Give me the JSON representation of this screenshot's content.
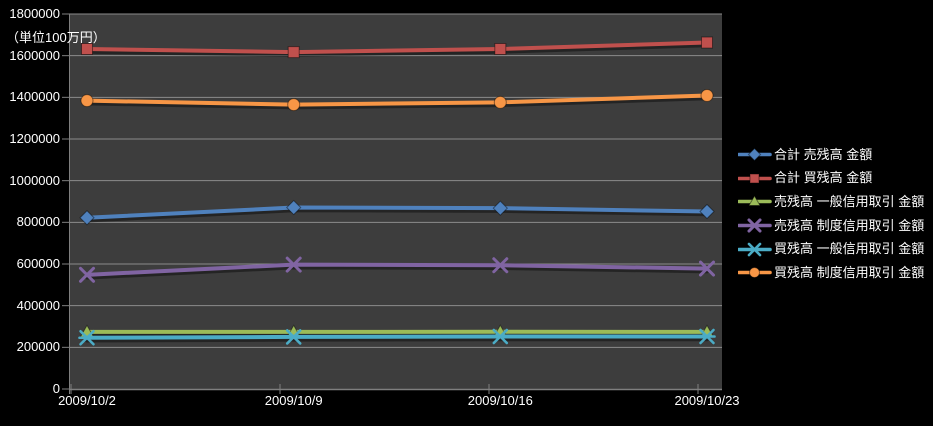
{
  "chart_data": {
    "type": "line",
    "title": "",
    "unit_label": "（単位100万円）",
    "xlabel": "",
    "ylabel": "",
    "ylim": [
      0,
      1800000
    ],
    "ytick_step": 200000,
    "ytick_labels": [
      "0",
      "200000",
      "400000",
      "600000",
      "800000",
      "1000000",
      "1200000",
      "1400000",
      "1600000",
      "1800000"
    ],
    "grid": true,
    "legend_position": "right",
    "categories": [
      "2009/10/2",
      "2009/10/9",
      "2009/10/16",
      "2009/10/23"
    ],
    "series": [
      {
        "name": "合計 売残高 金額",
        "color": "#4F81BD",
        "marker": "diamond",
        "values": [
          822000,
          871000,
          868000,
          852000
        ]
      },
      {
        "name": "合計 買残高 金額",
        "color": "#C0504D",
        "marker": "square",
        "values": [
          1632000,
          1617000,
          1632000,
          1663000
        ]
      },
      {
        "name": "売残高 一般信用取引 金額",
        "color": "#9BBB59",
        "marker": "triangle",
        "values": [
          274000,
          274000,
          275000,
          274000
        ]
      },
      {
        "name": "売残高 制度信用取引 金額",
        "color": "#8064A2",
        "marker": "x",
        "values": [
          548000,
          597000,
          594000,
          578000
        ]
      },
      {
        "name": "買残高 一般信用取引 金額",
        "color": "#4BACC6",
        "marker": "asterisk",
        "values": [
          246000,
          250000,
          252000,
          252000
        ]
      },
      {
        "name": "買残高 制度信用取引 金額",
        "color": "#F79646",
        "marker": "circle",
        "values": [
          1384000,
          1365000,
          1376000,
          1409000
        ]
      }
    ],
    "colors": {
      "background": "#000000",
      "plot_background": "#3d3d3d",
      "gridline": "#8c8c8c",
      "axis": "#7f7f7f",
      "text": "#ffffff"
    }
  }
}
